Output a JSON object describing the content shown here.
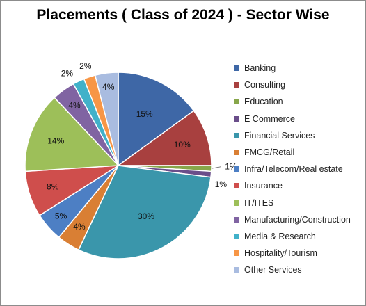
{
  "chart_data": {
    "type": "pie",
    "title": "Placements ( Class of 2024 ) - Sector Wise",
    "legend_position": "right",
    "slices": [
      {
        "name": "Banking",
        "value": 15,
        "label": "15%",
        "color": "#3e67a6"
      },
      {
        "name": "Consulting",
        "value": 10,
        "label": "10%",
        "color": "#a8403f"
      },
      {
        "name": "Education",
        "value": 1,
        "label": "1%",
        "color": "#87a64a"
      },
      {
        "name": "E Commerce",
        "value": 1,
        "label": "1%",
        "color": "#6a4e8a"
      },
      {
        "name": "Financial Services",
        "value": 30,
        "label": "30%",
        "color": "#3a96ab"
      },
      {
        "name": "FMCG/Retail",
        "value": 4,
        "label": "4%",
        "color": "#d97f34"
      },
      {
        "name": "Infra/Telecom/Real estate",
        "value": 5,
        "label": "5%",
        "color": "#4d7fc4"
      },
      {
        "name": "Insurance",
        "value": 8,
        "label": "8%",
        "color": "#cf4e4c"
      },
      {
        "name": "IT/ITES",
        "value": 14,
        "label": "14%",
        "color": "#9dbf59"
      },
      {
        "name": "Manufacturing/Construction",
        "value": 4,
        "label": "4%",
        "color": "#8064a2"
      },
      {
        "name": "Media & Research",
        "value": 2,
        "label": "2%",
        "color": "#41b1c9"
      },
      {
        "name": "Hospitality/Tourism",
        "value": 2,
        "label": "2%",
        "color": "#f79646"
      },
      {
        "name": "Other Services",
        "value": 4,
        "label": "4%",
        "color": "#a9bce0"
      }
    ]
  }
}
